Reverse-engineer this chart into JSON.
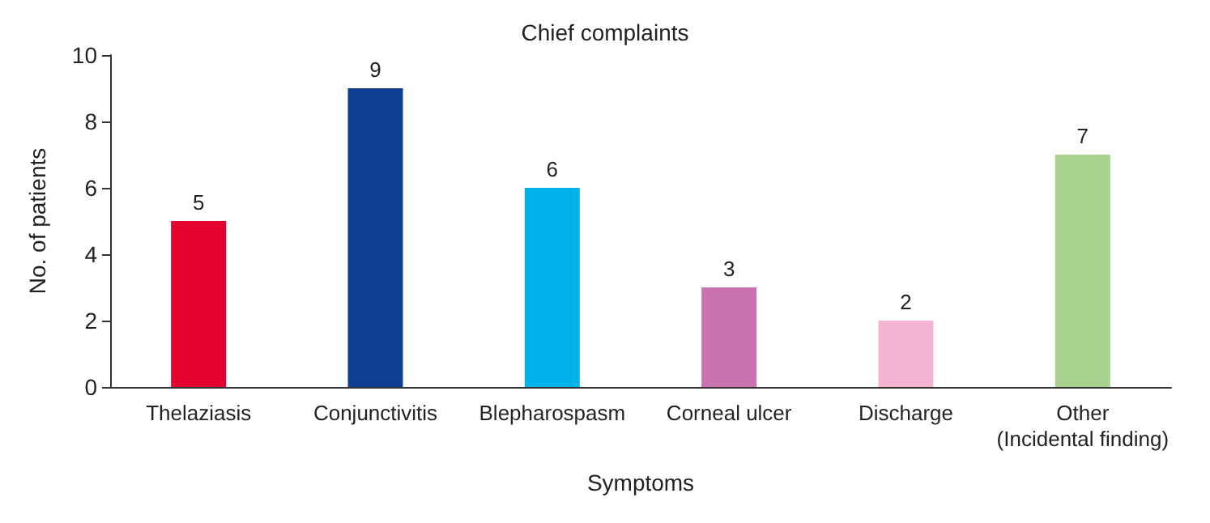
{
  "chart_data": {
    "type": "bar",
    "title": "Chief complaints",
    "xlabel": "Symptoms",
    "ylabel": "No. of patients",
    "categories": [
      "Thelaziasis",
      "Conjunctivitis",
      "Blepharospasm",
      "Corneal ulcer",
      "Discharge",
      "Other (Incidental finding)"
    ],
    "values": [
      5,
      9,
      6,
      3,
      2,
      7
    ],
    "colors": [
      "#e4032e",
      "#0f3f93",
      "#00b2ea",
      "#c972b0",
      "#f5b5d2",
      "#a9d18e"
    ],
    "ylim": [
      0,
      10
    ],
    "yticks": [
      0,
      2,
      4,
      6,
      8,
      10
    ],
    "grid": false,
    "data_labels": true
  }
}
